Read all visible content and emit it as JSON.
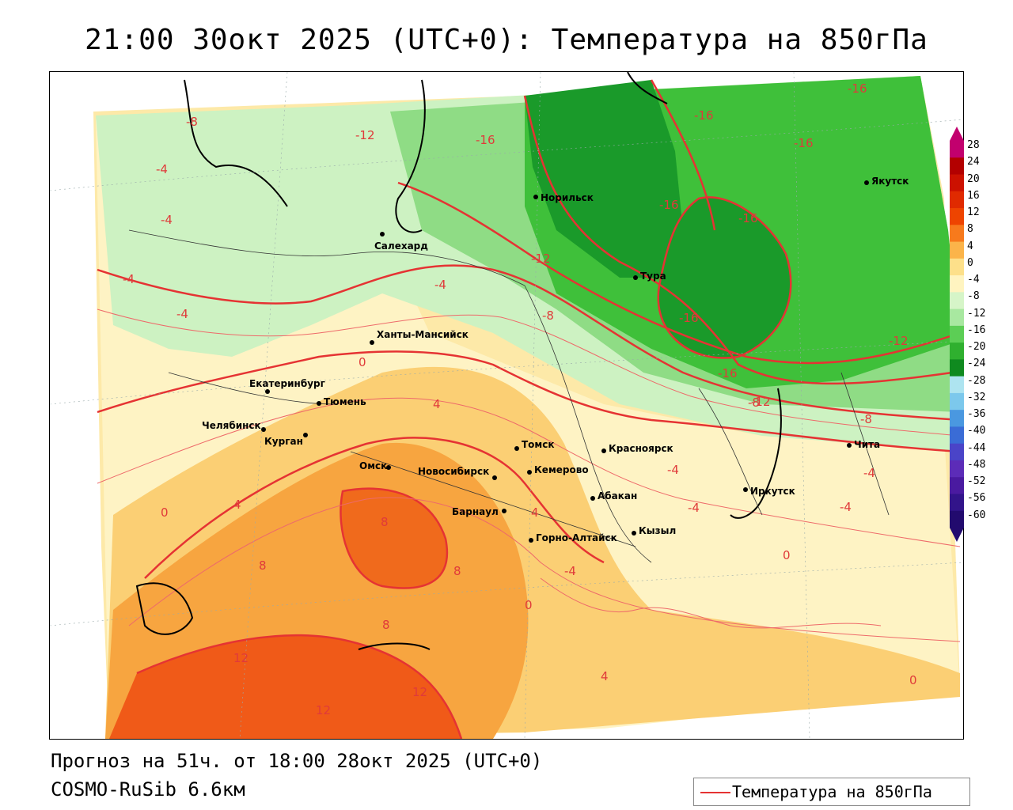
{
  "title": "21:00 30окт 2025 (UTC+0): Температура на 850гПа",
  "forecast_line": "Прогноз на 51ч. от 18:00 28окт 2025 (UTC+0)",
  "model_line": "COSMO-RuSib 6.6км",
  "legend_label": "Температура на 850гПа",
  "colorbar": {
    "labels": [
      "28",
      "24",
      "20",
      "16",
      "12",
      "8",
      "4",
      "0",
      "-4",
      "-8",
      "-12",
      "-16",
      "-20",
      "-24",
      "-28",
      "-32",
      "-36",
      "-40",
      "-44",
      "-48",
      "-52",
      "-56",
      "-60"
    ],
    "colors": [
      "#c2006e",
      "#b30000",
      "#cc1100",
      "#e02a00",
      "#ee4400",
      "#f77a1c",
      "#fbb44a",
      "#fde08a",
      "#fff4c0",
      "#d6f5c8",
      "#a8e8a0",
      "#5cce55",
      "#2fb02f",
      "#0f8a1f",
      "#aee4f0",
      "#7cc8ec",
      "#4a98e0",
      "#3a6cd6",
      "#4a44c8",
      "#5c2cb8",
      "#4a1aa0",
      "#32148a",
      "#220a6e"
    ]
  },
  "cities": [
    {
      "name": "Норильск"
    },
    {
      "name": "Якутск"
    },
    {
      "name": "Салехард"
    },
    {
      "name": "Тура"
    },
    {
      "name": "Ханты-Мансийск"
    },
    {
      "name": "Екатеринбург"
    },
    {
      "name": "Тюмень"
    },
    {
      "name": "Челябинск"
    },
    {
      "name": "Курган"
    },
    {
      "name": "Омск"
    },
    {
      "name": "Новосибирск"
    },
    {
      "name": "Томск"
    },
    {
      "name": "Кемерово"
    },
    {
      "name": "Красноярск"
    },
    {
      "name": "Барнаул"
    },
    {
      "name": "Абакан"
    },
    {
      "name": "Горно-Алтайск"
    },
    {
      "name": "Кызыл"
    },
    {
      "name": "Иркутск"
    },
    {
      "name": "Чита"
    }
  ],
  "isoline_labels": [
    "-8",
    "-4",
    "-4",
    "-4",
    "-4",
    "-12",
    "-16",
    "-16",
    "-16",
    "-16",
    "-16",
    "-16",
    "-16",
    "-16",
    "-12",
    "-12",
    "-12",
    "-8",
    "-8",
    "-4",
    "-4",
    "-4",
    "0",
    "0",
    "4",
    "4",
    "4",
    "8",
    "8",
    "8",
    "8",
    "12",
    "12",
    "12",
    "0",
    "0",
    "0",
    "4",
    "-4",
    "-4",
    "-8",
    "-4"
  ]
}
